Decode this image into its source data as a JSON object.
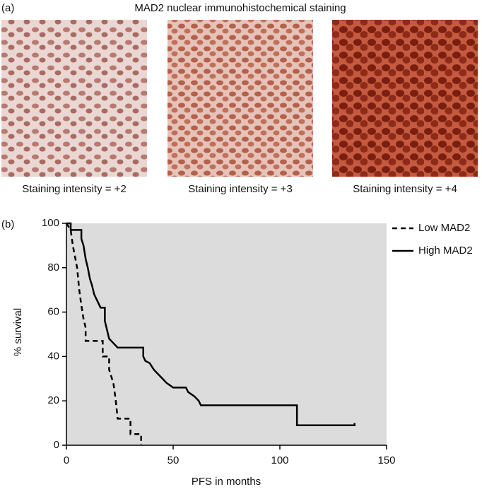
{
  "panel_a": {
    "label": "(a)",
    "title": "MAD2 nuclear immunohistochemical staining",
    "captions": [
      "Staining intensity = +2",
      "Staining intensity = +3",
      "Staining intensity = +4"
    ]
  },
  "chart_data": {
    "type": "line",
    "panel_label": "(b)",
    "xlabel": "PFS in months",
    "ylabel": "% survival",
    "xlim": [
      0,
      150
    ],
    "xticks": [
      0,
      50,
      100,
      150
    ],
    "ylim": [
      0,
      100
    ],
    "yticks": [
      0,
      20,
      40,
      60,
      80,
      100
    ],
    "series": [
      {
        "name": "Low MAD2",
        "color": "#000000",
        "dash": true,
        "x": [
          0,
          2,
          3,
          5,
          6,
          7,
          8,
          9,
          9,
          17,
          17,
          20,
          20,
          22,
          23,
          24,
          30,
          30,
          35,
          35
        ],
        "values": [
          100,
          97,
          90,
          80,
          70,
          63,
          57,
          53,
          47,
          47,
          40,
          40,
          34,
          28,
          21,
          12,
          12,
          5,
          5,
          0
        ]
      },
      {
        "name": "High MAD2",
        "color": "#000000",
        "dash": false,
        "x": [
          0,
          2,
          2,
          7,
          7,
          8,
          9,
          10,
          11,
          12,
          13,
          15,
          16,
          18,
          18,
          19,
          20,
          22,
          24,
          36,
          36,
          37,
          39,
          41,
          43,
          45,
          47,
          50,
          56,
          57,
          60,
          62,
          63,
          108,
          108,
          135,
          135
        ],
        "values": [
          100,
          100,
          97,
          97,
          93,
          90,
          84,
          80,
          75,
          72,
          68,
          64,
          62,
          62,
          56,
          52,
          48,
          46,
          44,
          44,
          40,
          38,
          37,
          34,
          32,
          30,
          28,
          26,
          26,
          24,
          22,
          20,
          18,
          18,
          9,
          9,
          10
        ]
      }
    ]
  }
}
